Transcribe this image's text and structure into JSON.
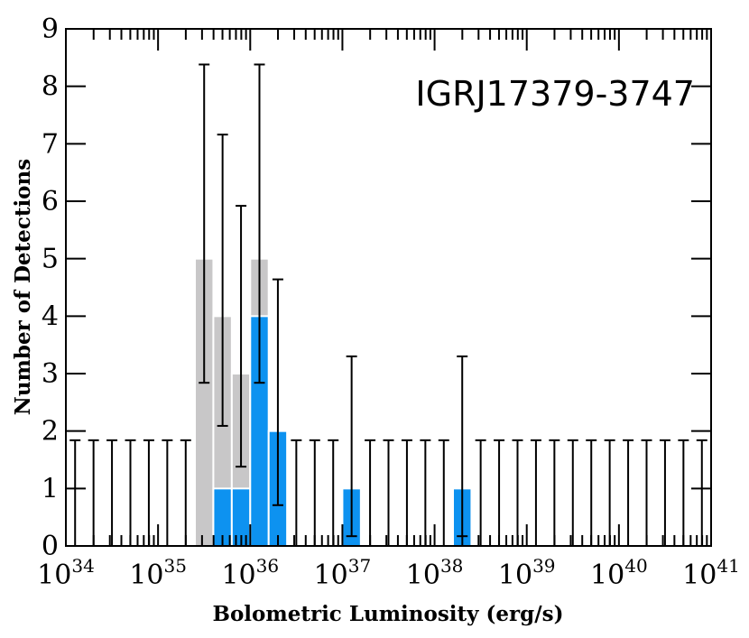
{
  "chart_data": {
    "type": "bar",
    "annotation": "IGRJ17379-3747",
    "xlabel": "Bolometric Luminosity (erg/s)",
    "ylabel": "Number of Detections",
    "x_scale": "log",
    "xlim_log10": [
      34,
      41
    ],
    "ylim": [
      0,
      9
    ],
    "y_ticks": [
      0,
      1,
      2,
      3,
      4,
      5,
      6,
      7,
      8,
      9
    ],
    "x_ticks": [
      {
        "base": "10",
        "exp": "34"
      },
      {
        "base": "10",
        "exp": "35"
      },
      {
        "base": "10",
        "exp": "36"
      },
      {
        "base": "10",
        "exp": "37"
      },
      {
        "base": "10",
        "exp": "38"
      },
      {
        "base": "10",
        "exp": "39"
      },
      {
        "base": "10",
        "exp": "40"
      },
      {
        "base": "10",
        "exp": "41"
      }
    ],
    "bin_width_log10": 0.2,
    "bin_starts_log10": [
      34.0,
      34.2,
      34.4,
      34.6,
      34.8,
      35.0,
      35.2,
      35.4,
      35.6,
      35.8,
      36.0,
      36.2,
      36.4,
      36.6,
      36.8,
      37.0,
      37.2,
      37.4,
      37.6,
      37.8,
      38.0,
      38.2,
      38.4,
      38.6,
      38.8,
      39.0,
      39.2,
      39.4,
      39.6,
      39.8,
      40.0,
      40.2,
      40.4,
      40.6,
      40.8
    ],
    "series": [
      {
        "color": "#c8c7c8",
        "values": [
          0,
          0,
          0,
          0,
          0,
          0,
          0,
          5,
          4,
          3,
          5,
          0,
          0,
          0,
          0,
          0,
          0,
          0,
          0,
          0,
          0,
          0,
          0,
          0,
          0,
          0,
          0,
          0,
          0,
          0,
          0,
          0,
          0,
          0,
          0
        ]
      },
      {
        "color": "#0d92f0",
        "values": [
          0,
          0,
          0,
          0,
          0,
          0,
          0,
          0,
          1,
          1,
          4,
          2,
          0,
          0,
          0,
          1,
          0,
          0,
          0,
          0,
          0,
          1,
          0,
          0,
          0,
          0,
          0,
          0,
          0,
          0,
          0,
          0,
          0,
          0,
          0
        ]
      }
    ],
    "error_bars": {
      "low": [
        0,
        0,
        0,
        0,
        0,
        0,
        0,
        2.84,
        2.09,
        1.38,
        2.84,
        0.71,
        0,
        0,
        0,
        0.17,
        0,
        0,
        0,
        0,
        0,
        0.17,
        0,
        0,
        0,
        0,
        0,
        0,
        0,
        0,
        0,
        0,
        0,
        0,
        0
      ],
      "high": [
        1.84,
        1.84,
        1.84,
        1.84,
        1.84,
        1.84,
        1.84,
        8.38,
        7.16,
        5.92,
        8.38,
        4.64,
        1.84,
        1.84,
        1.84,
        3.3,
        1.84,
        1.84,
        1.84,
        1.84,
        1.84,
        3.3,
        1.84,
        1.84,
        1.84,
        1.84,
        1.84,
        1.84,
        1.84,
        1.84,
        1.84,
        1.84,
        1.84,
        1.84,
        1.84
      ]
    },
    "grid": false,
    "legend": "none"
  }
}
